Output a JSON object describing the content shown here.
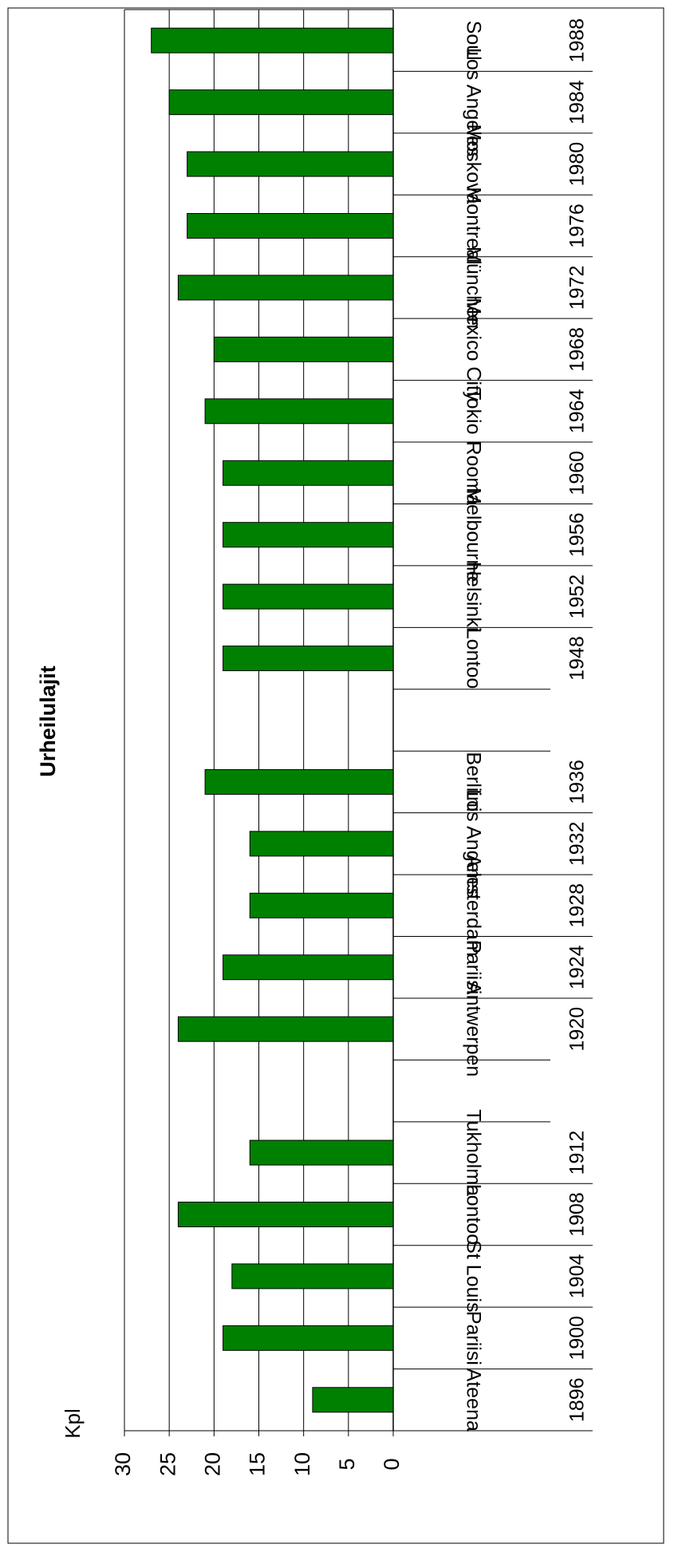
{
  "chart_data": {
    "type": "bar",
    "title": "Urheilulajit",
    "y_label": "Kpl",
    "categories": [
      "1896",
      "1900",
      "1904",
      "1908",
      "1912",
      null,
      "1920",
      "1924",
      "1928",
      "1932",
      "1936",
      null,
      "1948",
      "1952",
      "1956",
      "1960",
      "1964",
      "1968",
      "1972",
      "1976",
      "1980",
      "1984",
      "1988"
    ],
    "cities": [
      "Ateena",
      "Pariisi",
      "St Louis",
      "Lontoo",
      "Tukholma",
      null,
      "Antwerpen",
      "Pariisi",
      "Amsterdam",
      "Los Angeles",
      "Berliini",
      null,
      "Lontoo",
      "Helsinki",
      "Melbourne",
      "Rooma",
      "Tokio",
      "Mexico City",
      "München",
      "Montreal",
      "Moskova",
      "Los Angeles",
      "Soul"
    ],
    "values": [
      9,
      19,
      18,
      24,
      16,
      null,
      24,
      19,
      16,
      16,
      21,
      null,
      19,
      19,
      19,
      19,
      21,
      20,
      24,
      23,
      23,
      25,
      27
    ],
    "color": "#008000",
    "ylim": [
      0,
      30
    ],
    "yticks": [
      0,
      5,
      10,
      15,
      20,
      25,
      30
    ],
    "grid": true
  }
}
